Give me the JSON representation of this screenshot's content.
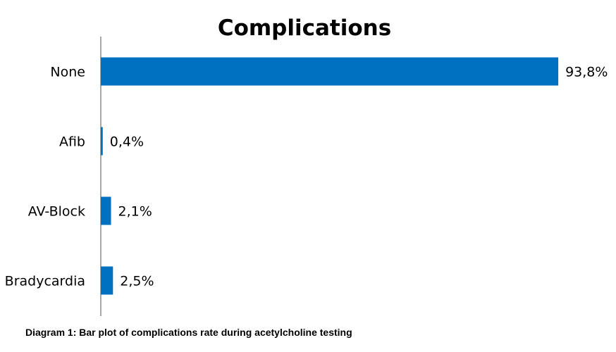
{
  "chart_data": {
    "type": "bar",
    "orientation": "horizontal",
    "title": "Complications",
    "categories": [
      "None",
      "Afib",
      "AV-Block",
      "Bradycardia"
    ],
    "values": [
      93.8,
      0.4,
      2.1,
      2.5
    ],
    "value_labels": [
      "93,8%",
      "0,4%",
      "2,1%",
      "2,5%"
    ],
    "xlim": [
      0,
      100
    ],
    "grid": false,
    "legend": "none",
    "bar_color": "#0070C0"
  },
  "caption": "Diagram 1: Bar plot of complications rate during acetylcholine testing"
}
